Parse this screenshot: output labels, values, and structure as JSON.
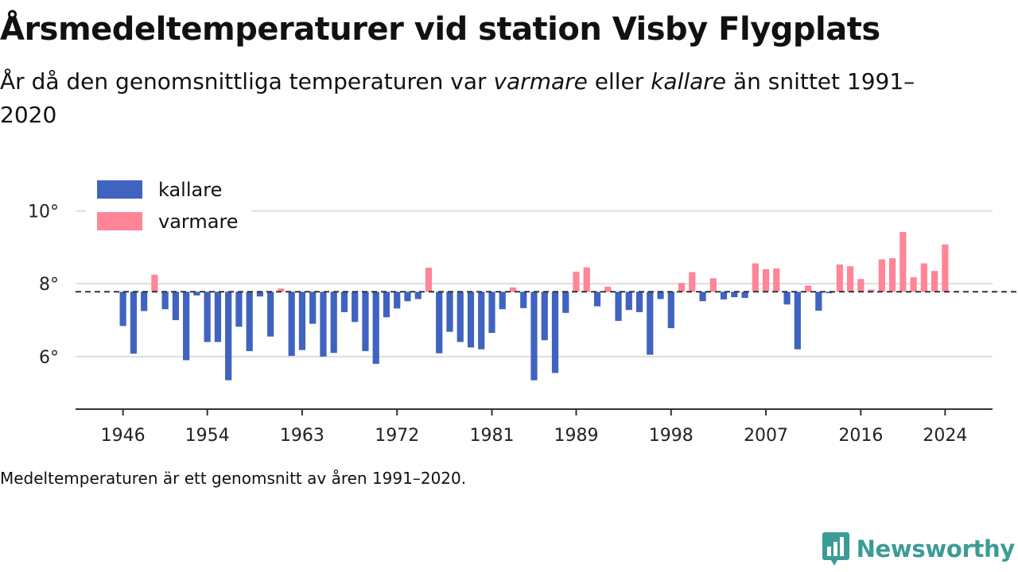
{
  "title": "Årsmedeltemperaturer vid station Visby Flygplats",
  "subtitle": {
    "part1": "År då den genomsnittliga temperaturen var ",
    "warm_word": "varmare",
    "part2": " eller ",
    "cold_word": "kallare",
    "part3": " än snittet 1991–2020"
  },
  "note": "Medeltemperaturen är ett genomsnitt av åren 1991–2020.",
  "brand": {
    "name": "Newsworthy",
    "icon": "newsworthy-logo-icon"
  },
  "colors": {
    "colder": "#4063bf",
    "warmer": "#ff8597",
    "baseline": "#333333",
    "grid": "#dddddd",
    "brand": "#3a9c95"
  },
  "chart_data": {
    "type": "bar",
    "baseline": 7.78,
    "ylim": [
      4.6,
      10.6
    ],
    "yticks": [
      6,
      8,
      10
    ],
    "ytick_labels": [
      "6°",
      "8°",
      "10°"
    ],
    "xticks": [
      1946,
      1954,
      1963,
      1972,
      1981,
      1989,
      1998,
      2007,
      2016,
      2024
    ],
    "xlim": [
      1941.5,
      2028.5
    ],
    "grid": true,
    "legend": {
      "position": "top-left",
      "entries": [
        {
          "label": "kallare",
          "color": "#4063bf"
        },
        {
          "label": "varmare",
          "color": "#ff8597"
        }
      ]
    },
    "x": [
      1946,
      1947,
      1948,
      1949,
      1950,
      1951,
      1952,
      1953,
      1954,
      1955,
      1956,
      1957,
      1958,
      1959,
      1960,
      1961,
      1962,
      1963,
      1964,
      1965,
      1966,
      1967,
      1968,
      1969,
      1970,
      1971,
      1972,
      1973,
      1974,
      1975,
      1976,
      1977,
      1978,
      1979,
      1980,
      1981,
      1982,
      1983,
      1984,
      1985,
      1986,
      1987,
      1988,
      1989,
      1990,
      1991,
      1992,
      1993,
      1994,
      1995,
      1996,
      1997,
      1998,
      1999,
      2000,
      2001,
      2002,
      2003,
      2004,
      2005,
      2006,
      2007,
      2008,
      2009,
      2010,
      2011,
      2012,
      2013,
      2014,
      2015,
      2016,
      2017,
      2018,
      2019,
      2020,
      2021,
      2022,
      2023,
      2024
    ],
    "values": [
      6.84,
      6.08,
      7.25,
      8.25,
      7.3,
      7.0,
      5.9,
      7.68,
      6.4,
      6.4,
      5.35,
      6.82,
      6.15,
      7.65,
      6.55,
      7.87,
      6.02,
      6.18,
      6.9,
      6.0,
      6.1,
      7.22,
      6.95,
      6.15,
      5.8,
      7.08,
      7.32,
      7.52,
      7.58,
      8.44,
      6.09,
      6.68,
      6.4,
      6.25,
      6.2,
      6.65,
      7.3,
      7.9,
      7.33,
      5.35,
      6.45,
      5.55,
      7.2,
      8.33,
      8.45,
      7.38,
      7.92,
      6.98,
      7.28,
      7.22,
      6.05,
      7.58,
      6.78,
      8.02,
      8.32,
      7.52,
      8.15,
      7.57,
      7.63,
      7.61,
      8.56,
      8.4,
      8.42,
      7.43,
      6.2,
      7.95,
      7.26,
      7.74,
      8.53,
      8.48,
      8.13,
      7.84,
      8.67,
      8.7,
      9.42,
      8.18,
      8.56,
      8.35,
      9.08
    ]
  }
}
